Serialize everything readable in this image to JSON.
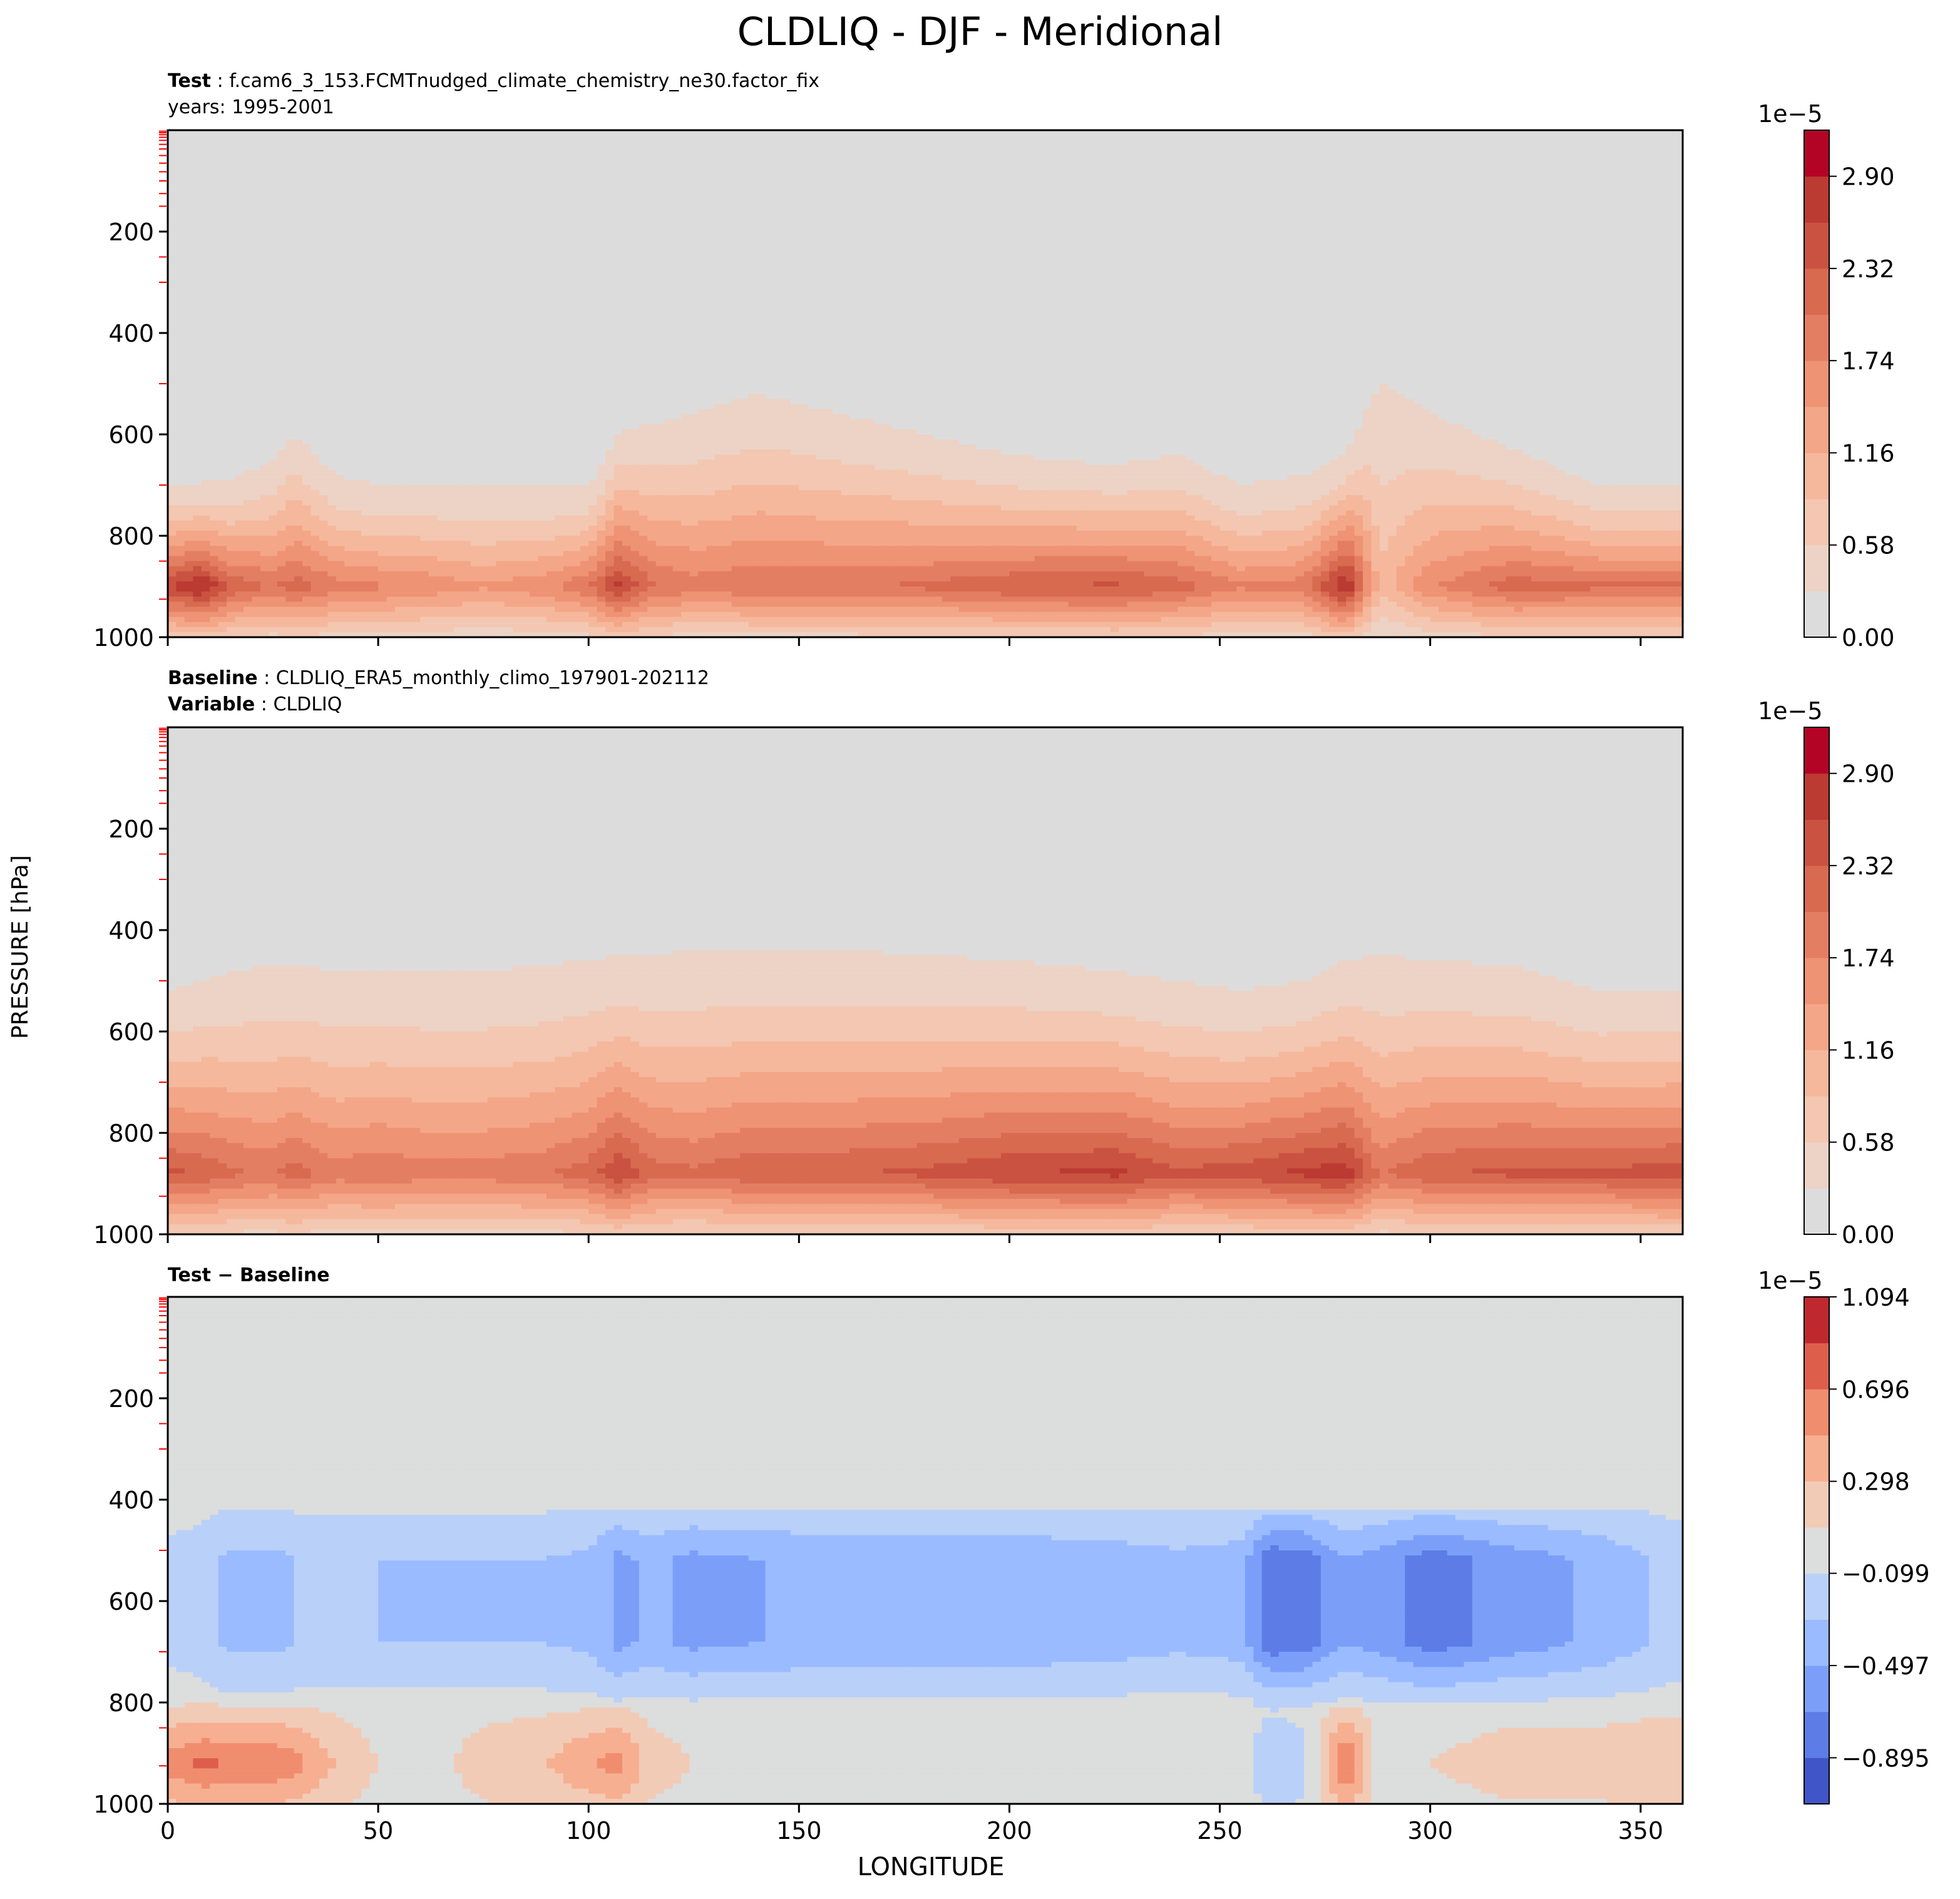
{
  "title": "CLDLIQ - DJF - Meridional",
  "ylabel": "PRESSURE [hPa]",
  "xlabel": "LONGITUDE",
  "panels": [
    {
      "title_lines": [
        {
          "label": "Test",
          "sep": " : ",
          "value": "f.cam6_3_153.FCMTnudged_climate_chemistry_ne30.factor_fix"
        },
        {
          "label": "",
          "sep": "",
          "value": "years: 1995-2001"
        }
      ],
      "colorbar_exponent": "1e−5",
      "colorbar_ticks": [
        "0.00",
        "0.58",
        "1.16",
        "1.74",
        "2.32",
        "2.90"
      ]
    },
    {
      "title_lines": [
        {
          "label": "Baseline",
          "sep": " : ",
          "value": "CLDLIQ_ERA5_monthly_climo_197901-202112"
        },
        {
          "label": "Variable",
          "sep": " : ",
          "value": "CLDLIQ"
        }
      ],
      "colorbar_exponent": "1e−5",
      "colorbar_ticks": [
        "0.00",
        "0.58",
        "1.16",
        "1.74",
        "2.32",
        "2.90"
      ]
    },
    {
      "title_lines": [
        {
          "label": "Test − Baseline",
          "sep": "",
          "value": ""
        }
      ],
      "colorbar_exponent": "1e−5",
      "colorbar_ticks": [
        "−0.895",
        "−0.497",
        "−0.099",
        "0.298",
        "0.696",
        "1.094"
      ]
    }
  ],
  "chart_data": [
    {
      "type": "heatmap",
      "name": "Test",
      "x_range": [
        0,
        360
      ],
      "y_range": [
        1000,
        0
      ],
      "y_inverted": true,
      "x_ticks": [
        0,
        50,
        100,
        150,
        200,
        250,
        300,
        350
      ],
      "y_ticks": [
        200,
        400,
        600,
        800,
        1000
      ],
      "colormap": "coolwarm",
      "color_levels": [
        0.0,
        0.29,
        0.58,
        0.87,
        1.16,
        1.45,
        1.74,
        2.03,
        2.32,
        2.61,
        2.9,
        3.19
      ],
      "level_colors": [
        "#dddcdc",
        "#ecd3c5",
        "#f3c7b1",
        "#f5b89c",
        "#f4a688",
        "#ee9374",
        "#e47e62",
        "#d86a50",
        "#ca5240",
        "#bb3a32",
        "#b40426"
      ],
      "x": [
        0,
        8,
        15,
        25,
        30,
        40,
        50,
        60,
        75,
        90,
        100,
        107,
        115,
        125,
        140,
        160,
        180,
        200,
        225,
        240,
        255,
        270,
        280,
        288,
        300,
        320,
        340,
        360
      ],
      "top_contour_hPa": [
        700,
        695,
        690,
        650,
        600,
        680,
        700,
        700,
        700,
        705,
        700,
        600,
        580,
        560,
        520,
        560,
        600,
        640,
        660,
        640,
        700,
        680,
        640,
        500,
        560,
        630,
        700,
        700
      ],
      "column_max_1e-5": [
        2.6,
        3.0,
        2.3,
        2.0,
        2.2,
        1.9,
        1.8,
        1.7,
        1.5,
        1.7,
        2.0,
        2.7,
        2.1,
        1.9,
        2.0,
        2.0,
        2.1,
        2.3,
        2.4,
        2.2,
        1.8,
        1.9,
        3.0,
        1.0,
        1.7,
        2.2,
        2.1,
        2.1
      ],
      "max_level_hPa": 900
    },
    {
      "type": "heatmap",
      "name": "Baseline",
      "x_range": [
        0,
        360
      ],
      "y_range": [
        1000,
        0
      ],
      "y_inverted": true,
      "x_ticks": [
        0,
        50,
        100,
        150,
        200,
        250,
        300,
        350
      ],
      "y_ticks": [
        200,
        400,
        600,
        800,
        1000
      ],
      "colormap": "coolwarm",
      "color_levels": [
        0.0,
        0.29,
        0.58,
        0.87,
        1.16,
        1.45,
        1.74,
        2.03,
        2.32,
        2.61,
        2.9,
        3.19
      ],
      "level_colors": [
        "#dddcdc",
        "#ecd3c5",
        "#f3c7b1",
        "#f5b89c",
        "#f4a688",
        "#ee9374",
        "#e47e62",
        "#d86a50",
        "#ca5240",
        "#bb3a32",
        "#b40426"
      ],
      "x": [
        0,
        8,
        15,
        25,
        30,
        40,
        50,
        60,
        75,
        90,
        100,
        107,
        115,
        125,
        140,
        160,
        180,
        200,
        225,
        240,
        255,
        270,
        280,
        288,
        300,
        320,
        340,
        360
      ],
      "top_contour_hPa": [
        520,
        500,
        480,
        470,
        470,
        480,
        480,
        480,
        480,
        470,
        460,
        450,
        450,
        440,
        440,
        440,
        450,
        460,
        480,
        500,
        520,
        500,
        460,
        450,
        460,
        470,
        520,
        520
      ],
      "column_max_1e-5": [
        2.4,
        2.3,
        2.1,
        2.0,
        2.2,
        1.9,
        2.0,
        1.9,
        1.9,
        2.0,
        2.2,
        2.6,
        2.2,
        2.1,
        2.3,
        2.3,
        2.4,
        2.6,
        2.7,
        2.4,
        2.5,
        2.7,
        2.8,
        2.0,
        2.3,
        2.4,
        2.4,
        2.5
      ],
      "max_level_hPa": 880
    },
    {
      "type": "heatmap",
      "name": "Test − Baseline",
      "x_range": [
        0,
        360
      ],
      "y_range": [
        1000,
        0
      ],
      "y_inverted": true,
      "x_ticks": [
        0,
        50,
        100,
        150,
        200,
        250,
        300,
        350
      ],
      "y_ticks": [
        200,
        400,
        600,
        800,
        1000
      ],
      "colormap": "coolwarm",
      "color_levels": [
        -1.094,
        -0.895,
        -0.696,
        -0.497,
        -0.298,
        -0.099,
        0.099,
        0.298,
        0.497,
        0.696,
        0.895,
        1.094
      ],
      "level_colors": [
        "#4055c8",
        "#5d7ce6",
        "#7b9ff9",
        "#9abbff",
        "#b9d0f9",
        "#dcdddd",
        "#f2cbb7",
        "#f7af91",
        "#f18d6f",
        "#dd5f4b",
        "#c0282f"
      ],
      "x": [
        0,
        8,
        15,
        25,
        30,
        40,
        50,
        60,
        75,
        90,
        100,
        107,
        115,
        125,
        140,
        160,
        180,
        200,
        225,
        240,
        255,
        262,
        270,
        280,
        288,
        300,
        320,
        340,
        360
      ],
      "negative_region": {
        "top_hPa": 420,
        "base_hPa": 720
      },
      "column_min_1e-5": [
        -0.15,
        -0.2,
        -0.35,
        -0.35,
        -0.3,
        -0.25,
        -0.3,
        -0.3,
        -0.3,
        -0.3,
        -0.35,
        -0.55,
        -0.45,
        -0.55,
        -0.5,
        -0.45,
        -0.45,
        -0.45,
        -0.4,
        -0.35,
        -0.4,
        -0.85,
        -0.8,
        -0.5,
        -0.6,
        -0.8,
        -0.6,
        -0.45,
        -0.2
      ],
      "surface_max_1e-5": [
        0.6,
        0.75,
        0.7,
        0.7,
        0.6,
        0.3,
        0.1,
        0.0,
        0.2,
        0.3,
        0.5,
        0.6,
        0.2,
        0.1,
        0.0,
        0.0,
        0.0,
        0.0,
        0.0,
        0.0,
        0.0,
        -0.3,
        -0.2,
        0.8,
        0.0,
        0.1,
        0.2,
        0.2,
        0.3
      ],
      "surface_level_hPa": 920
    }
  ]
}
